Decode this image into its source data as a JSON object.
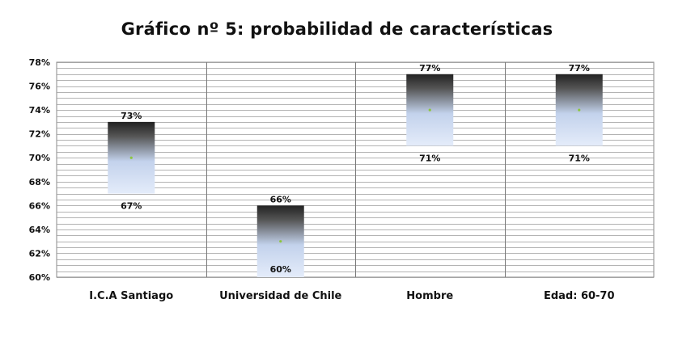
{
  "chart_data": {
    "type": "bar",
    "title": "Gráfico nº 5: probabilidad de características",
    "xlabel": "",
    "ylabel": "",
    "categories": [
      "I.C.A Santiago",
      "Universidad de Chile",
      "Hombre",
      "Edad: 60-70"
    ],
    "series": [
      {
        "low": 67,
        "mid": 70,
        "high": 73
      },
      {
        "low": 60,
        "mid": 63,
        "high": 66
      },
      {
        "low": 71,
        "mid": 74,
        "high": 77
      },
      {
        "low": 71,
        "mid": 74,
        "high": 77
      }
    ],
    "high_labels": [
      "73%",
      "66%",
      "77%",
      "77%"
    ],
    "low_labels": [
      "67%",
      "60%",
      "71%",
      "71%"
    ],
    "ylim": [
      60,
      78
    ],
    "yticks": [
      60,
      62,
      64,
      66,
      68,
      70,
      72,
      74,
      76,
      78
    ],
    "ytick_labels": [
      "60%",
      "62%",
      "64%",
      "66%",
      "68%",
      "70%",
      "72%",
      "74%",
      "76%",
      "78%"
    ],
    "grid": true,
    "legend": "none",
    "colors": {
      "bar_top": "#222222",
      "bar_bottom": "#e4ecfa",
      "mid_marker": "#8cc63f",
      "grid": "#9a9a9a"
    }
  }
}
